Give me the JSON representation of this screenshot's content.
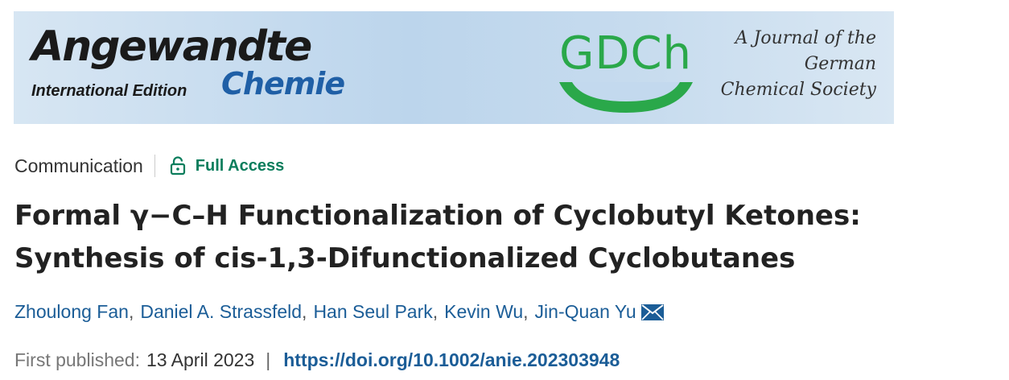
{
  "banner": {
    "journal_title": "Angewandte",
    "edition": "International Edition",
    "journal_subtitle": "Chemie",
    "society_logo": "GDCh",
    "tagline_lines": [
      "A Journal of the",
      "German",
      "Chemical Society"
    ],
    "colors": {
      "background": "#c6dbee",
      "chemie_blue": "#1f5fa6",
      "gdch_green": "#2aa84a"
    }
  },
  "meta": {
    "article_type": "Communication",
    "access_icon": "lock-open-icon",
    "access_label": "Full Access",
    "access_color": "#0a7d5c"
  },
  "article": {
    "title": "Formal γ−C–H Functionalization of Cyclobutyl Ketones: Synthesis of cis-1,3-Difunctionalized Cyclobutanes",
    "authors": [
      "Zhoulong Fan",
      "Daniel A. Strassfeld",
      "Han Seul Park",
      "Kevin Wu",
      "Jin-Quan Yu"
    ],
    "author_separator": ",",
    "corresponding_icon": "envelope-icon",
    "link_color": "#1b5d97"
  },
  "publication": {
    "published_label": "First published:",
    "published_date": "13 April 2023",
    "separator": "|",
    "doi": "https://doi.org/10.1002/anie.202303948"
  }
}
